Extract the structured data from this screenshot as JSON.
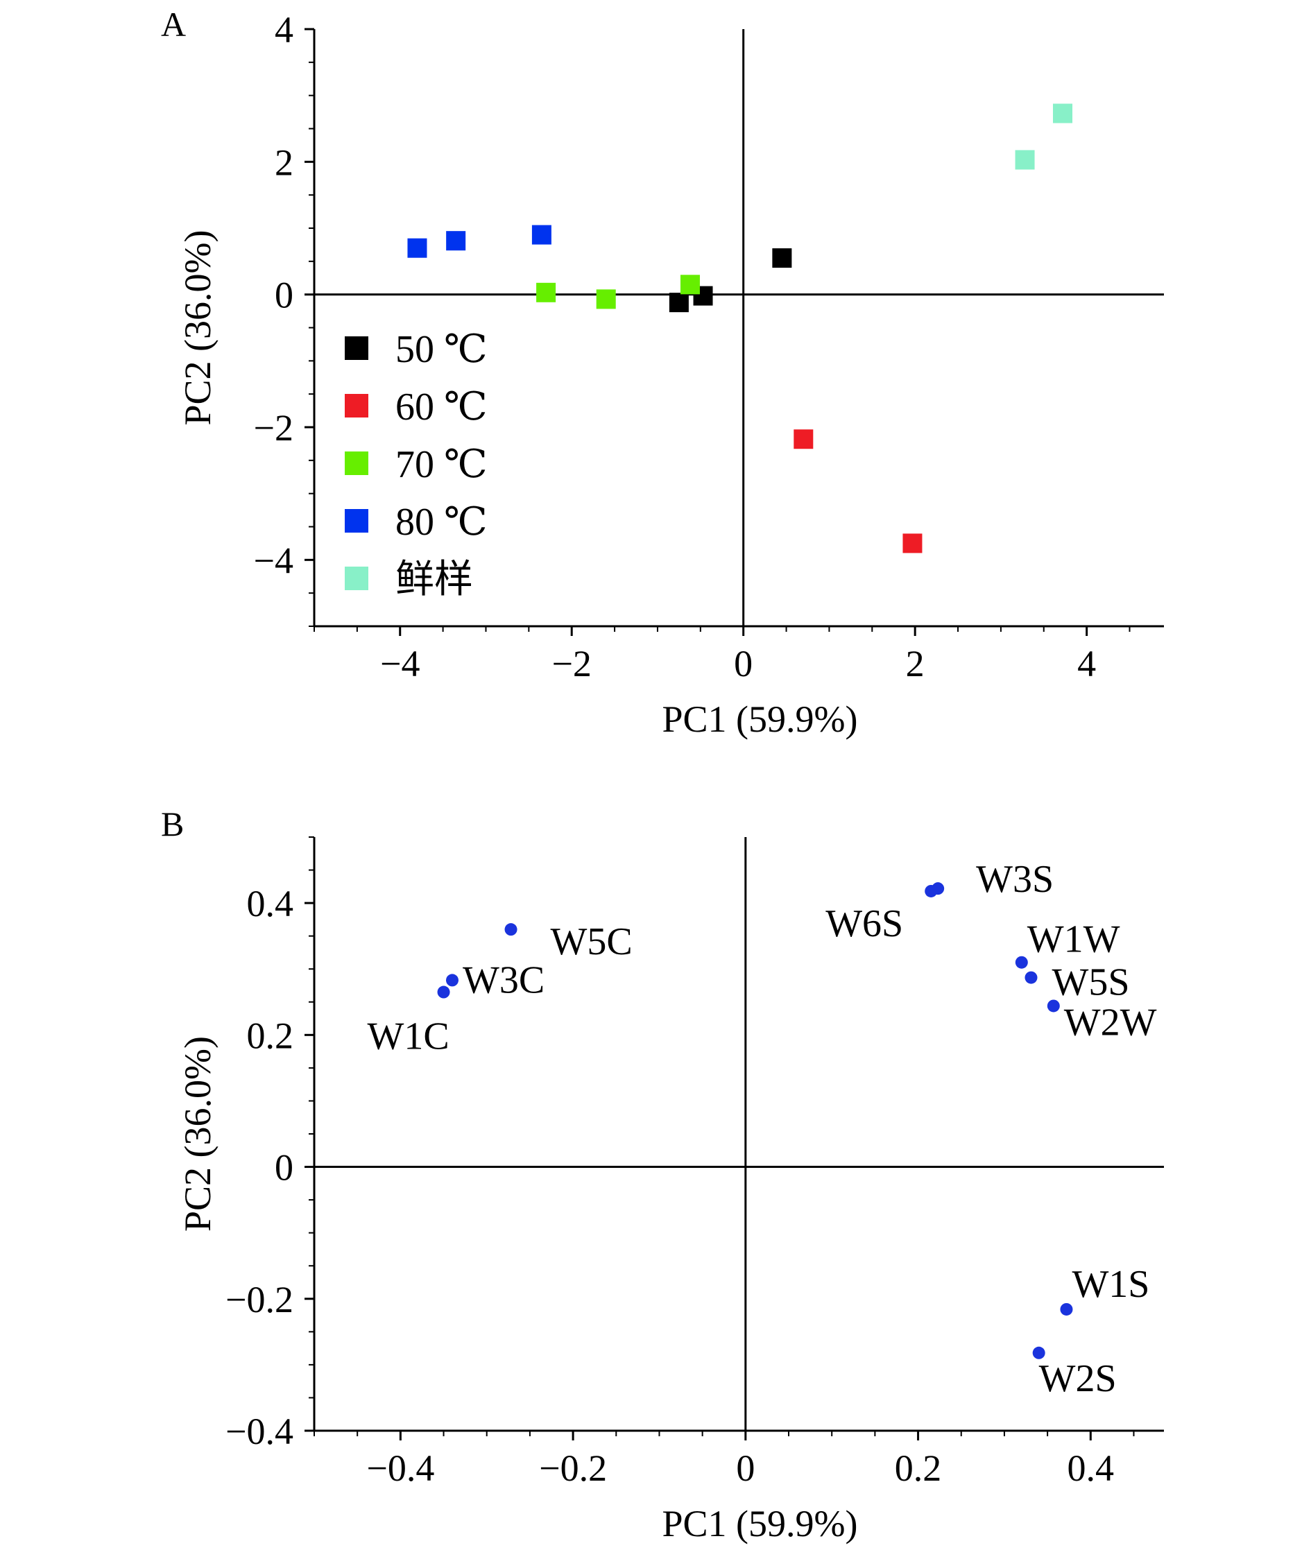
{
  "chart_data": [
    {
      "panel": "A",
      "type": "scatter",
      "xlabel": "PC1 (59.9%)",
      "ylabel": "PC2 (36.0%)",
      "xlim": [
        -5,
        4.9
      ],
      "ylim": [
        -5,
        4
      ],
      "xticks": [
        -4,
        -2,
        0,
        2,
        4
      ],
      "yticks": [
        -4,
        -2,
        0,
        2,
        4
      ],
      "x_tick_labels": [
        "−4",
        "−2",
        "0",
        "2",
        "4"
      ],
      "y_tick_labels": [
        "−4",
        "−2",
        "0",
        "2",
        "4"
      ],
      "legend_position": "center-left",
      "marker": "square",
      "series": [
        {
          "name": "50 ℃",
          "color": "#000000",
          "points": [
            [
              -0.75,
              -0.12
            ],
            [
              -0.47,
              -0.02
            ],
            [
              0.45,
              0.55
            ]
          ]
        },
        {
          "name": "60 ℃",
          "color": "#ee1c25",
          "points": [
            [
              0.7,
              -2.18
            ],
            [
              1.97,
              -3.75
            ]
          ]
        },
        {
          "name": "70 ℃",
          "color": "#66ee00",
          "points": [
            [
              -2.3,
              0.03
            ],
            [
              -1.6,
              -0.07
            ],
            [
              -0.62,
              0.15
            ]
          ]
        },
        {
          "name": "80 ℃",
          "color": "#0033ee",
          "points": [
            [
              -3.8,
              0.7
            ],
            [
              -3.35,
              0.81
            ],
            [
              -2.35,
              0.9
            ]
          ]
        },
        {
          "name": "鲜样",
          "color": "#88f0c8",
          "points": [
            [
              3.28,
              2.03
            ],
            [
              3.72,
              2.73
            ]
          ]
        }
      ]
    },
    {
      "panel": "B",
      "type": "scatter",
      "xlabel": "PC1 (59.9%)",
      "ylabel": "PC2 (36.0%)",
      "xlim": [
        -0.5,
        0.485
      ],
      "ylim": [
        -0.4,
        0.5
      ],
      "xticks": [
        -0.4,
        -0.2,
        0,
        0.2,
        0.4
      ],
      "yticks": [
        -0.4,
        -0.2,
        0,
        0.2,
        0.4
      ],
      "x_tick_labels": [
        "−0.4",
        "−0.2",
        "0",
        "0.2",
        "0.4"
      ],
      "y_tick_labels": [
        "−0.4",
        "−0.2",
        "0",
        "0.2",
        "0.4"
      ],
      "marker": "dot",
      "color": "#1a33dd",
      "points": [
        {
          "label": "W1C",
          "x": -0.35,
          "y": 0.265
        },
        {
          "label": "W3C",
          "x": -0.34,
          "y": 0.283
        },
        {
          "label": "W5C",
          "x": -0.272,
          "y": 0.36
        },
        {
          "label": "W6S",
          "x": 0.215,
          "y": 0.418
        },
        {
          "label": "W3S",
          "x": 0.223,
          "y": 0.422
        },
        {
          "label": "W1W",
          "x": 0.32,
          "y": 0.31
        },
        {
          "label": "W5S",
          "x": 0.331,
          "y": 0.287
        },
        {
          "label": "W2W",
          "x": 0.357,
          "y": 0.244
        },
        {
          "label": "W1S",
          "x": 0.372,
          "y": -0.216
        },
        {
          "label": "W2S",
          "x": 0.34,
          "y": -0.282
        }
      ]
    }
  ],
  "panels": {
    "a": {
      "letter": "A"
    },
    "b": {
      "letter": "B"
    }
  }
}
